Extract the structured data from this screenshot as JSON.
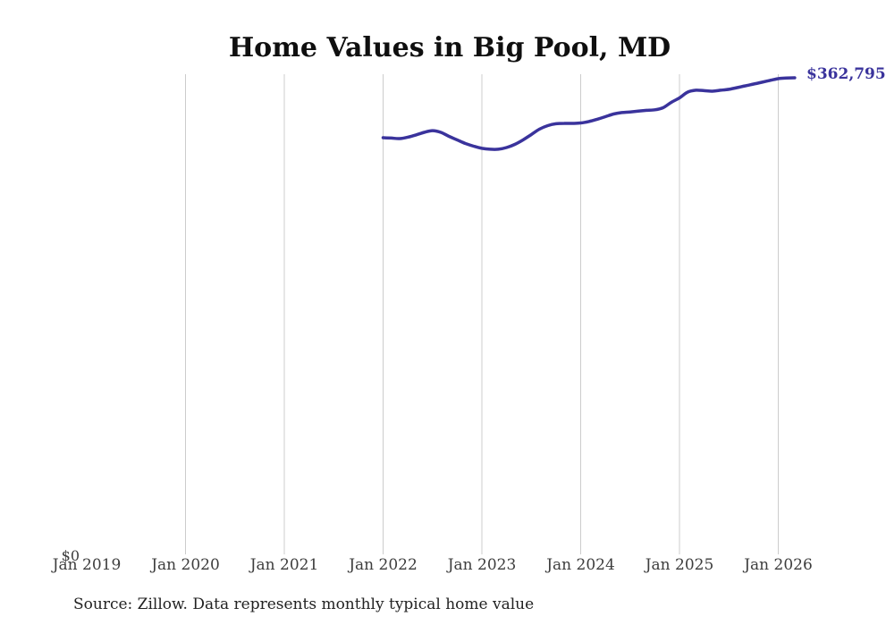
{
  "title": "Home Values in Big Pool, MD",
  "source_note": "Source: Zillow. Data represents monthly typical home value",
  "y_axis": {
    "zero_label": "$0"
  },
  "colors": {
    "line": "#3a339c",
    "end_label": "#3a339c",
    "gridline": "#cccccc",
    "title": "#0f0f0f",
    "axis_label": "#3d3d3d",
    "source": "#222222",
    "background": "#ffffff"
  },
  "chart_data": {
    "type": "line",
    "title": "Home Values in Big Pool, MD",
    "xlabel": "",
    "ylabel": "",
    "ylim": [
      0,
      380000
    ],
    "grid": "vertical-only",
    "legend": "none",
    "x_ticks": [
      {
        "label": "Jan 2019",
        "gridline": false
      },
      {
        "label": "Jan 2020",
        "gridline": true
      },
      {
        "label": "Jan 2021",
        "gridline": true
      },
      {
        "label": "Jan 2022",
        "gridline": true
      },
      {
        "label": "Jan 2023",
        "gridline": true
      },
      {
        "label": "Jan 2024",
        "gridline": true
      },
      {
        "label": "Jan 2025",
        "gridline": true
      },
      {
        "label": "Jan 2026",
        "gridline": true
      }
    ],
    "series": [
      {
        "name": "Monthly typical home value",
        "start_month": "2022-01",
        "end_month": "2026-03",
        "months": [
          "2022-01",
          "2022-02",
          "2022-03",
          "2022-04",
          "2022-05",
          "2022-06",
          "2022-07",
          "2022-08",
          "2022-09",
          "2022-10",
          "2022-11",
          "2022-12",
          "2023-01",
          "2023-02",
          "2023-03",
          "2023-04",
          "2023-05",
          "2023-06",
          "2023-07",
          "2023-08",
          "2023-09",
          "2023-10",
          "2023-11",
          "2023-12",
          "2024-01",
          "2024-02",
          "2024-03",
          "2024-04",
          "2024-05",
          "2024-06",
          "2024-07",
          "2024-08",
          "2024-09",
          "2024-10",
          "2024-11",
          "2024-12",
          "2025-01",
          "2025-02",
          "2025-03",
          "2025-04",
          "2025-05",
          "2025-06",
          "2025-07",
          "2025-08",
          "2025-09",
          "2025-10",
          "2025-11",
          "2025-12",
          "2026-01",
          "2026-02",
          "2026-03"
        ],
        "values": [
          317200,
          316900,
          316500,
          317600,
          319300,
          321300,
          322600,
          321300,
          318200,
          315500,
          312800,
          310700,
          309100,
          308400,
          308400,
          309700,
          312100,
          315500,
          319600,
          323700,
          326400,
          327800,
          328100,
          328100,
          328400,
          329500,
          331200,
          333200,
          335200,
          336300,
          336800,
          337400,
          338000,
          338400,
          340000,
          344100,
          347500,
          351900,
          353300,
          353000,
          352600,
          353300,
          354000,
          355300,
          356700,
          358000,
          359400,
          360800,
          362100,
          362600,
          362795
        ]
      }
    ],
    "final_value": 362795,
    "final_value_label": "$362,795"
  }
}
